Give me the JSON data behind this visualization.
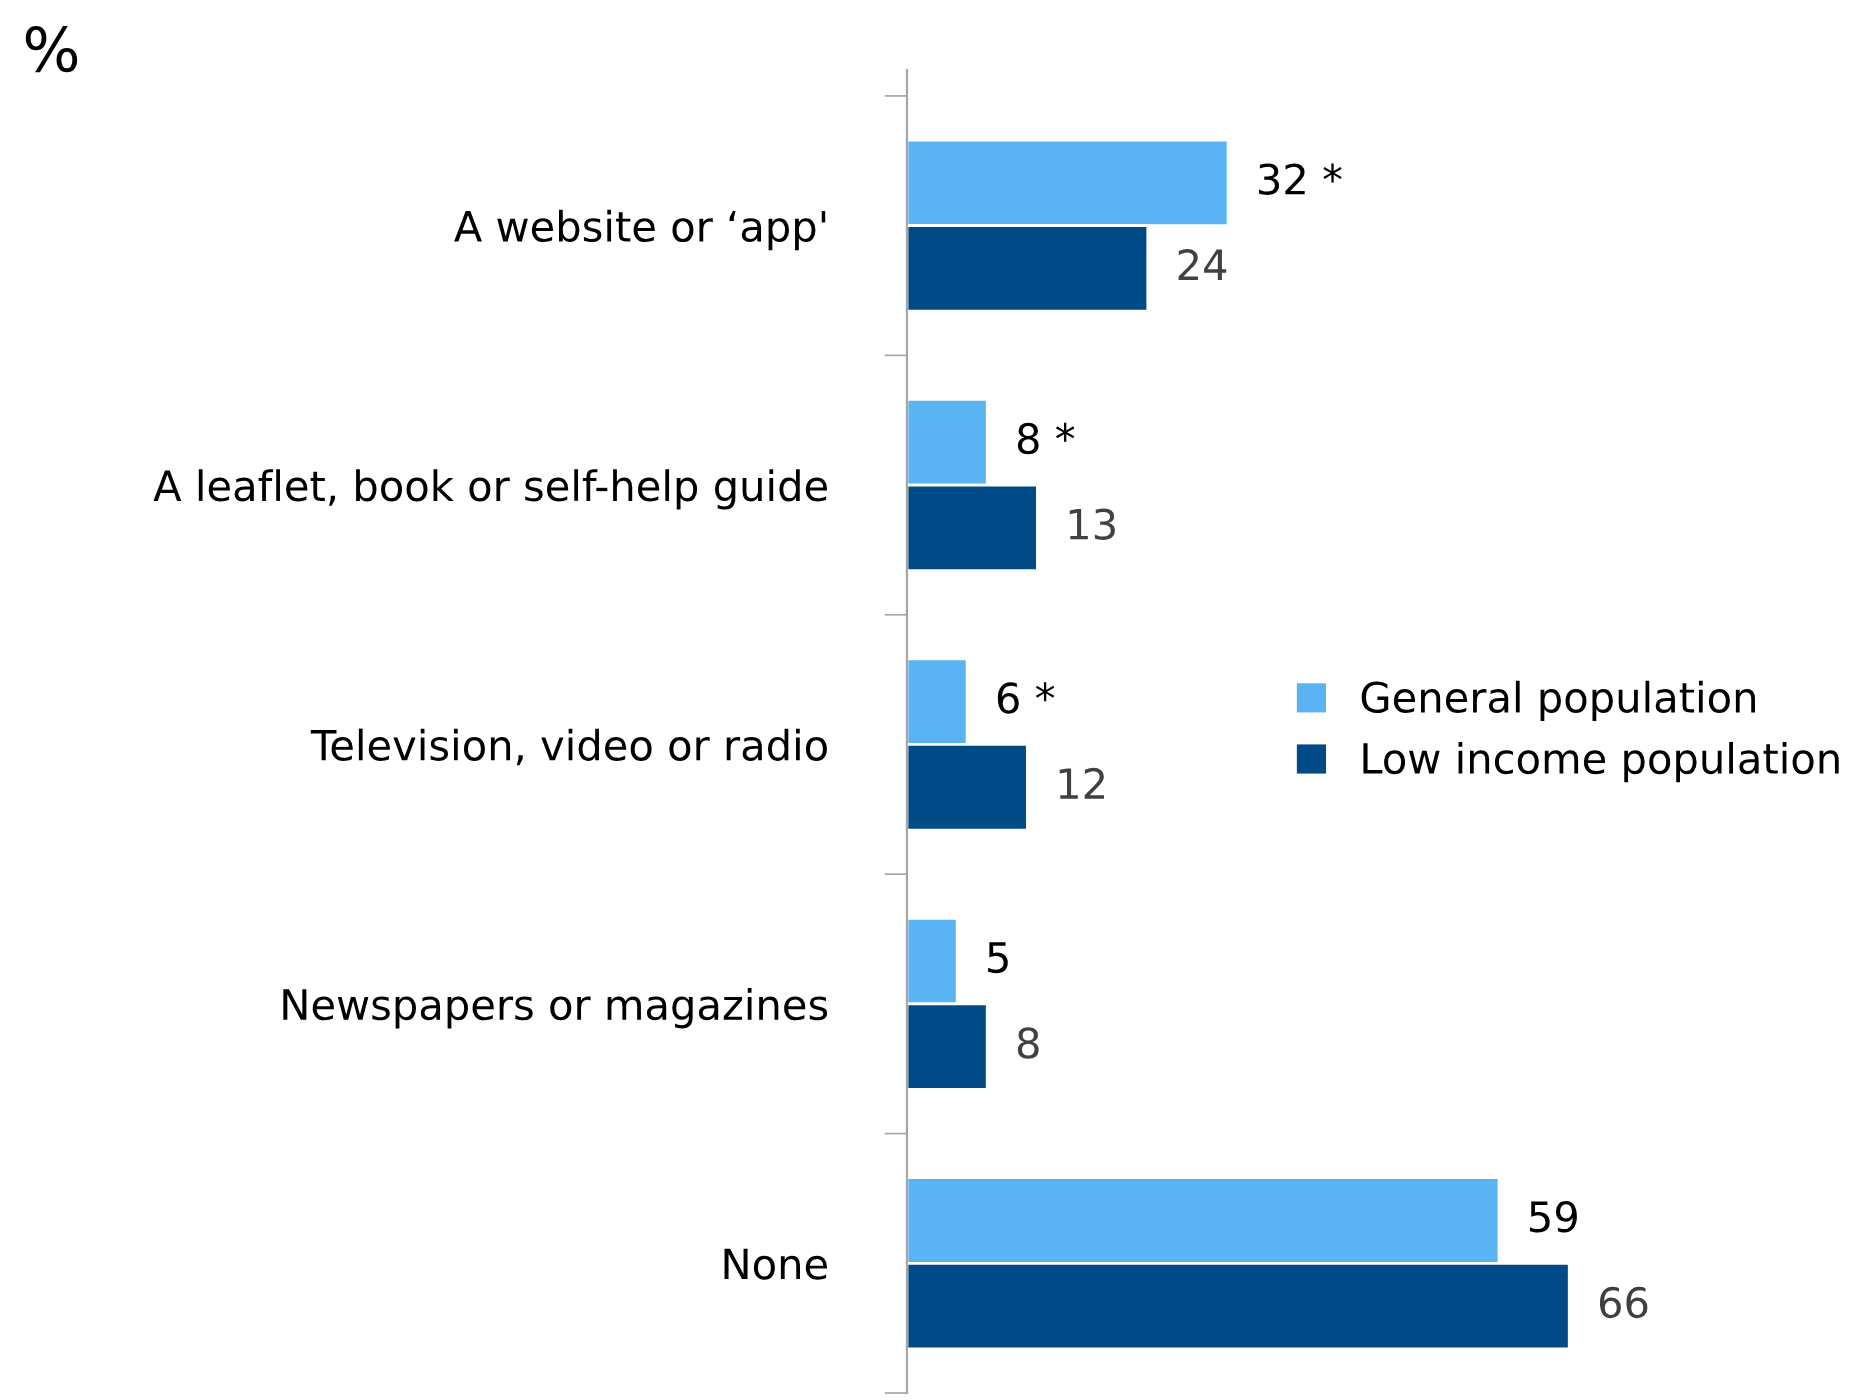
{
  "chart_data": {
    "type": "bar",
    "orientation": "horizontal",
    "categories": [
      "A website or ‘app'",
      "A leaflet, book or self-help guide",
      "Television, video or radio",
      "Newspapers or magazines",
      "None"
    ],
    "series": [
      {
        "name": "General population",
        "color": "#5ab4f4",
        "values": [
          32,
          8,
          6,
          5,
          59
        ],
        "value_labels": [
          "32 *",
          "8 *",
          "6 *",
          "5",
          "59"
        ]
      },
      {
        "name": "Low income population",
        "color": "#004b87",
        "values": [
          24,
          13,
          12,
          8,
          66
        ],
        "value_labels": [
          "24",
          "13",
          "12",
          "8",
          "66"
        ]
      }
    ],
    "annotations": [
      "%"
    ],
    "legend": "right",
    "grid": false,
    "tick_labels": "y"
  }
}
